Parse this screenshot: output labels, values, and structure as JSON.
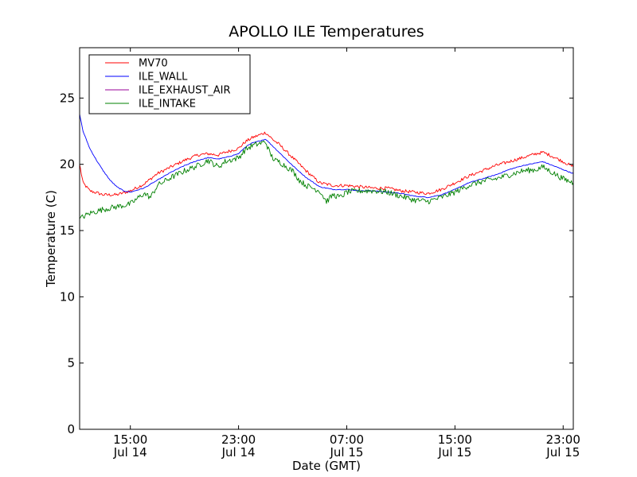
{
  "chart_data": {
    "type": "line",
    "title": "APOLLO ILE Temperatures",
    "xlabel": "Date (GMT)",
    "ylabel": "Temperature (C)",
    "xlim": [
      "2014-07-14 11:15",
      "2014-07-15 23:45"
    ],
    "ylim": [
      0,
      28.8
    ],
    "yticks": [
      0,
      5,
      10,
      15,
      20,
      25
    ],
    "xticks": [
      {
        "at": "2014-07-14 15:00",
        "time": "15:00",
        "date": "Jul 14"
      },
      {
        "at": "2014-07-14 23:00",
        "time": "23:00",
        "date": "Jul 14"
      },
      {
        "at": "2014-07-15 07:00",
        "time": "07:00",
        "date": "Jul 15"
      },
      {
        "at": "2014-07-15 15:00",
        "time": "15:00",
        "date": "Jul 15"
      },
      {
        "at": "2014-07-15 23:00",
        "time": "23:00",
        "date": "Jul 15"
      }
    ],
    "grid": false,
    "legend_position": "top-left",
    "series": [
      {
        "name": "MV70",
        "color": "#ff0000",
        "points": [
          [
            "2014-07-14 11:15",
            20.0
          ],
          [
            "2014-07-14 11:30",
            18.6
          ],
          [
            "2014-07-14 12:00",
            18.0
          ],
          [
            "2014-07-14 13:00",
            17.7
          ],
          [
            "2014-07-14 14:00",
            17.7
          ],
          [
            "2014-07-14 15:00",
            18.0
          ],
          [
            "2014-07-14 16:00",
            18.5
          ],
          [
            "2014-07-14 17:00",
            19.3
          ],
          [
            "2014-07-14 18:00",
            19.8
          ],
          [
            "2014-07-14 19:00",
            20.3
          ],
          [
            "2014-07-14 20:00",
            20.7
          ],
          [
            "2014-07-14 20:45",
            20.8
          ],
          [
            "2014-07-14 21:30",
            20.7
          ],
          [
            "2014-07-14 22:00",
            20.9
          ],
          [
            "2014-07-14 23:00",
            21.2
          ],
          [
            "2014-07-14 23:30",
            21.7
          ],
          [
            "2014-07-15 00:00",
            22.0
          ],
          [
            "2014-07-15 00:30",
            22.2
          ],
          [
            "2014-07-15 01:00",
            22.4
          ],
          [
            "2014-07-15 01:30",
            21.9
          ],
          [
            "2014-07-15 02:00",
            21.5
          ],
          [
            "2014-07-15 03:00",
            20.5
          ],
          [
            "2014-07-15 04:00",
            19.5
          ],
          [
            "2014-07-15 05:00",
            18.6
          ],
          [
            "2014-07-15 06:00",
            18.4
          ],
          [
            "2014-07-15 07:00",
            18.4
          ],
          [
            "2014-07-15 08:00",
            18.3
          ],
          [
            "2014-07-15 09:00",
            18.2
          ],
          [
            "2014-07-15 10:00",
            18.2
          ],
          [
            "2014-07-15 11:00",
            18.0
          ],
          [
            "2014-07-15 12:00",
            17.9
          ],
          [
            "2014-07-15 13:00",
            17.8
          ],
          [
            "2014-07-15 14:00",
            18.1
          ],
          [
            "2014-07-15 15:00",
            18.6
          ],
          [
            "2014-07-15 16:00",
            19.1
          ],
          [
            "2014-07-15 17:00",
            19.5
          ],
          [
            "2014-07-15 18:00",
            19.9
          ],
          [
            "2014-07-15 19:00",
            20.2
          ],
          [
            "2014-07-15 20:00",
            20.5
          ],
          [
            "2014-07-15 21:00",
            20.8
          ],
          [
            "2014-07-15 21:30",
            20.9
          ],
          [
            "2014-07-15 22:00",
            20.7
          ],
          [
            "2014-07-15 23:00",
            20.2
          ],
          [
            "2014-07-15 23:45",
            19.8
          ]
        ]
      },
      {
        "name": "ILE_WALL",
        "color": "#0000ff",
        "points": [
          [
            "2014-07-14 11:15",
            23.8
          ],
          [
            "2014-07-14 11:30",
            22.5
          ],
          [
            "2014-07-14 12:00",
            21.2
          ],
          [
            "2014-07-14 12:30",
            20.3
          ],
          [
            "2014-07-14 13:00",
            19.5
          ],
          [
            "2014-07-14 13:30",
            18.8
          ],
          [
            "2014-07-14 14:00",
            18.3
          ],
          [
            "2014-07-14 14:30",
            18.0
          ],
          [
            "2014-07-14 15:00",
            17.9
          ],
          [
            "2014-07-14 16:00",
            18.2
          ],
          [
            "2014-07-14 17:00",
            18.8
          ],
          [
            "2014-07-14 18:00",
            19.4
          ],
          [
            "2014-07-14 19:00",
            19.9
          ],
          [
            "2014-07-14 20:00",
            20.3
          ],
          [
            "2014-07-14 20:45",
            20.5
          ],
          [
            "2014-07-14 21:30",
            20.4
          ],
          [
            "2014-07-14 22:00",
            20.5
          ],
          [
            "2014-07-14 23:00",
            20.8
          ],
          [
            "2014-07-14 23:30",
            21.3
          ],
          [
            "2014-07-15 00:00",
            21.6
          ],
          [
            "2014-07-15 01:00",
            21.9
          ],
          [
            "2014-07-15 01:30",
            21.4
          ],
          [
            "2014-07-15 02:00",
            20.9
          ],
          [
            "2014-07-15 03:00",
            19.9
          ],
          [
            "2014-07-15 04:00",
            19.0
          ],
          [
            "2014-07-15 05:00",
            18.3
          ],
          [
            "2014-07-15 06:00",
            18.1
          ],
          [
            "2014-07-15 07:00",
            18.1
          ],
          [
            "2014-07-15 08:00",
            18.0
          ],
          [
            "2014-07-15 09:00",
            18.0
          ],
          [
            "2014-07-15 10:00",
            17.9
          ],
          [
            "2014-07-15 11:00",
            17.8
          ],
          [
            "2014-07-15 12:00",
            17.6
          ],
          [
            "2014-07-15 13:00",
            17.5
          ],
          [
            "2014-07-15 14:00",
            17.7
          ],
          [
            "2014-07-15 15:00",
            18.1
          ],
          [
            "2014-07-15 16:00",
            18.6
          ],
          [
            "2014-07-15 17:00",
            18.9
          ],
          [
            "2014-07-15 18:00",
            19.2
          ],
          [
            "2014-07-15 19:00",
            19.6
          ],
          [
            "2014-07-15 20:00",
            19.9
          ],
          [
            "2014-07-15 21:00",
            20.1
          ],
          [
            "2014-07-15 21:30",
            20.2
          ],
          [
            "2014-07-15 22:00",
            20.0
          ],
          [
            "2014-07-15 23:00",
            19.6
          ],
          [
            "2014-07-15 23:45",
            19.3
          ]
        ]
      },
      {
        "name": "ILE_EXHAUST_AIR",
        "color": "#990099",
        "points": []
      },
      {
        "name": "ILE_INTAKE",
        "color": "#008000",
        "points": [
          [
            "2014-07-14 11:15",
            15.9
          ],
          [
            "2014-07-14 12:00",
            16.3
          ],
          [
            "2014-07-14 13:00",
            16.6
          ],
          [
            "2014-07-14 14:00",
            16.8
          ],
          [
            "2014-07-14 15:00",
            17.0
          ],
          [
            "2014-07-14 15:30",
            17.4
          ],
          [
            "2014-07-14 16:00",
            17.8
          ],
          [
            "2014-07-14 16:30",
            17.5
          ],
          [
            "2014-07-14 17:00",
            18.4
          ],
          [
            "2014-07-14 18:00",
            19.0
          ],
          [
            "2014-07-14 19:00",
            19.5
          ],
          [
            "2014-07-14 20:00",
            19.9
          ],
          [
            "2014-07-14 20:45",
            20.3
          ],
          [
            "2014-07-14 21:30",
            19.8
          ],
          [
            "2014-07-14 22:00",
            20.2
          ],
          [
            "2014-07-14 23:00",
            20.5
          ],
          [
            "2014-07-14 23:30",
            21.1
          ],
          [
            "2014-07-15 00:00",
            21.4
          ],
          [
            "2014-07-15 01:00",
            21.7
          ],
          [
            "2014-07-15 01:20",
            20.8
          ],
          [
            "2014-07-15 01:40",
            20.3
          ],
          [
            "2014-07-15 02:00",
            20.2
          ],
          [
            "2014-07-15 03:00",
            19.5
          ],
          [
            "2014-07-15 03:30",
            18.8
          ],
          [
            "2014-07-15 04:00",
            18.4
          ],
          [
            "2014-07-15 05:00",
            18.0
          ],
          [
            "2014-07-15 05:30",
            17.2
          ],
          [
            "2014-07-15 06:00",
            17.7
          ],
          [
            "2014-07-15 06:30",
            17.5
          ],
          [
            "2014-07-15 07:00",
            17.9
          ],
          [
            "2014-07-15 08:00",
            18.0
          ],
          [
            "2014-07-15 09:00",
            18.0
          ],
          [
            "2014-07-15 10:00",
            17.9
          ],
          [
            "2014-07-15 11:00",
            17.6
          ],
          [
            "2014-07-15 12:00",
            17.3
          ],
          [
            "2014-07-15 13:00",
            17.2
          ],
          [
            "2014-07-15 14:00",
            17.5
          ],
          [
            "2014-07-15 15:00",
            17.9
          ],
          [
            "2014-07-15 16:00",
            18.4
          ],
          [
            "2014-07-15 17:00",
            18.7
          ],
          [
            "2014-07-15 18:00",
            18.9
          ],
          [
            "2014-07-15 19:00",
            19.2
          ],
          [
            "2014-07-15 20:00",
            19.5
          ],
          [
            "2014-07-15 21:00",
            19.6
          ],
          [
            "2014-07-15 21:30",
            19.8
          ],
          [
            "2014-07-15 22:00",
            19.5
          ],
          [
            "2014-07-15 23:00",
            18.9
          ],
          [
            "2014-07-15 23:45",
            18.6
          ]
        ]
      }
    ]
  }
}
